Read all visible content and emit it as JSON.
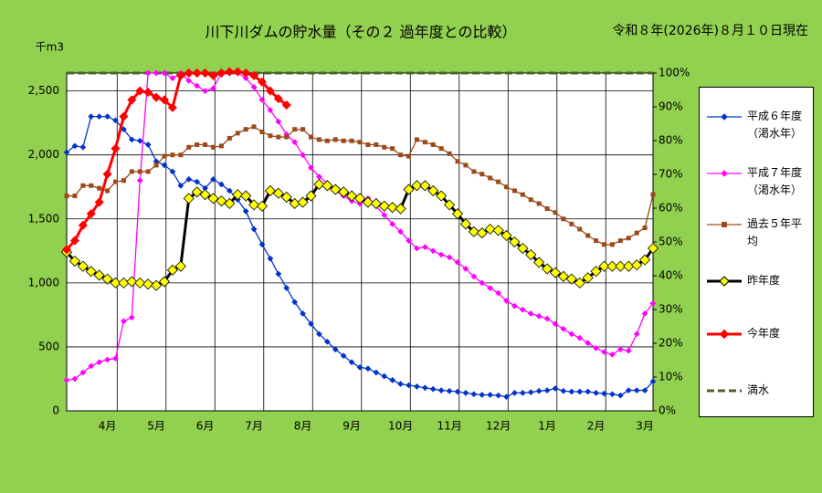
{
  "chart_data": {
    "type": "line",
    "title": "川下川ダムの貯水量（その２ 過年度との比較）",
    "subtitle": "令和８年(2026年)８月１０日現在",
    "y_label": "千m3",
    "categories": [
      null,
      null,
      null,
      null,
      null,
      "4月",
      null,
      null,
      null,
      null,
      null,
      "5月",
      null,
      null,
      null,
      null,
      null,
      "6月",
      null,
      null,
      null,
      null,
      null,
      "7月",
      null,
      null,
      null,
      null,
      null,
      "8月",
      null,
      null,
      null,
      null,
      null,
      "9月",
      null,
      null,
      null,
      null,
      null,
      "10月",
      null,
      null,
      null,
      null,
      null,
      "11月",
      null,
      null,
      null,
      null,
      null,
      "12月",
      null,
      null,
      null,
      null,
      null,
      "1月",
      null,
      null,
      null,
      null,
      null,
      "2月",
      null,
      null,
      null,
      null,
      null,
      "3月",
      null
    ],
    "ylim": [
      0,
      2640
    ],
    "yticks": [
      0,
      500,
      {
        "value": 1000,
        "label": "1,000"
      },
      {
        "value": 1500,
        "label": "1,500"
      },
      {
        "value": 2000,
        "label": "2,000"
      },
      {
        "value": 2500,
        "label": "2,500"
      }
    ],
    "y2lim": [
      0,
      100
    ],
    "y2ticks": [
      {
        "value": 0,
        "label": "0%"
      },
      {
        "value": 10,
        "label": "10%"
      },
      {
        "value": 20,
        "label": "20%"
      },
      {
        "value": 30,
        "label": "30%"
      },
      {
        "value": 40,
        "label": "40%"
      },
      {
        "value": 50,
        "label": "50%"
      },
      {
        "value": 60,
        "label": "60%"
      },
      {
        "value": 70,
        "label": "70%"
      },
      {
        "value": 80,
        "label": "80%"
      },
      {
        "value": 90,
        "label": "90%"
      },
      {
        "value": 100,
        "label": "100%"
      }
    ],
    "grid": true,
    "legend": "right",
    "series": [
      {
        "name": "平成６年度（渇水年）",
        "color": "#0033cc",
        "marker": "diamond",
        "values": [
          2020,
          2070,
          2060,
          2300,
          2300,
          2300,
          2270,
          2200,
          2120,
          2110,
          2080,
          1950,
          1920,
          1870,
          1760,
          1810,
          1790,
          1740,
          1810,
          1770,
          1720,
          1650,
          1560,
          1420,
          1300,
          1190,
          1070,
          960,
          850,
          760,
          680,
          600,
          540,
          480,
          430,
          380,
          340,
          330,
          300,
          270,
          240,
          210,
          200,
          190,
          180,
          170,
          160,
          155,
          150,
          140,
          130,
          125,
          125,
          120,
          110,
          140,
          140,
          145,
          155,
          160,
          175,
          155,
          150,
          150,
          150,
          140,
          135,
          130,
          120,
          160,
          160,
          160,
          230
        ]
      },
      {
        "name": "平成７年度（渇水年）",
        "color": "#ff00ff",
        "marker": "diamond",
        "values": [
          240,
          250,
          300,
          350,
          380,
          400,
          410,
          700,
          730,
          1800,
          2640,
          2640,
          2640,
          2600,
          2640,
          2580,
          2540,
          2500,
          2520,
          2640,
          2640,
          2640,
          2600,
          2530,
          2430,
          2350,
          2260,
          2160,
          2100,
          2000,
          1900,
          1830,
          1780,
          1720,
          1680,
          1640,
          1620,
          1660,
          1600,
          1530,
          1460,
          1400,
          1330,
          1270,
          1280,
          1250,
          1220,
          1200,
          1160,
          1110,
          1050,
          1000,
          960,
          920,
          860,
          820,
          790,
          760,
          740,
          720,
          680,
          640,
          600,
          570,
          530,
          490,
          460,
          440,
          480,
          470,
          600,
          760,
          840
        ]
      },
      {
        "name": "過去５年平均",
        "color": "#9c4a1a",
        "marker": "square",
        "values": [
          1680,
          1680,
          1760,
          1760,
          1740,
          1720,
          1790,
          1800,
          1870,
          1870,
          1870,
          1920,
          1990,
          2000,
          2000,
          2060,
          2080,
          2080,
          2060,
          2070,
          2130,
          2170,
          2200,
          2220,
          2180,
          2150,
          2140,
          2140,
          2200,
          2200,
          2140,
          2120,
          2110,
          2120,
          2110,
          2110,
          2100,
          2080,
          2080,
          2060,
          2050,
          2000,
          1990,
          2120,
          2100,
          2080,
          2050,
          2010,
          1950,
          1920,
          1870,
          1850,
          1820,
          1790,
          1750,
          1720,
          1690,
          1650,
          1620,
          1580,
          1550,
          1500,
          1460,
          1420,
          1370,
          1330,
          1300,
          1300,
          1330,
          1350,
          1390,
          1430,
          1690
        ]
      },
      {
        "name": "昨年度",
        "color": "#000000",
        "marker": "yellow-diamond",
        "values": [
          1240,
          1170,
          1130,
          1090,
          1060,
          1030,
          1000,
          1000,
          1010,
          1000,
          990,
          980,
          1010,
          1100,
          1130,
          1660,
          1710,
          1690,
          1660,
          1640,
          1620,
          1690,
          1680,
          1610,
          1600,
          1720,
          1700,
          1670,
          1620,
          1630,
          1680,
          1770,
          1760,
          1730,
          1710,
          1680,
          1660,
          1630,
          1620,
          1600,
          1590,
          1580,
          1730,
          1760,
          1760,
          1720,
          1680,
          1610,
          1540,
          1460,
          1400,
          1390,
          1420,
          1410,
          1370,
          1320,
          1270,
          1220,
          1160,
          1110,
          1080,
          1050,
          1030,
          1000,
          1040,
          1090,
          1130,
          1130,
          1130,
          1130,
          1140,
          1180,
          1270
        ]
      },
      {
        "name": "今年度",
        "color": "#ff0000",
        "marker": "red-diamond",
        "values": [
          1260,
          1330,
          1450,
          1540,
          1630,
          1850,
          2050,
          2300,
          2430,
          2500,
          2490,
          2450,
          2430,
          2370,
          2620,
          2640,
          2640,
          2640,
          2620,
          2640,
          2650,
          2650,
          2640,
          2620,
          2570,
          2500,
          2440,
          2390,
          null,
          null,
          null,
          null,
          null,
          null,
          null,
          null,
          null,
          null,
          null,
          null,
          null,
          null,
          null,
          null,
          null,
          null,
          null,
          null,
          null,
          null,
          null,
          null,
          null,
          null,
          null,
          null,
          null,
          null,
          null,
          null,
          null,
          null,
          null,
          null,
          null,
          null,
          null,
          null,
          null,
          null,
          null,
          null,
          null
        ]
      }
    ],
    "full_line": {
      "name": "満水",
      "color": "#4f6228",
      "value": 100,
      "axis": "y2"
    }
  }
}
